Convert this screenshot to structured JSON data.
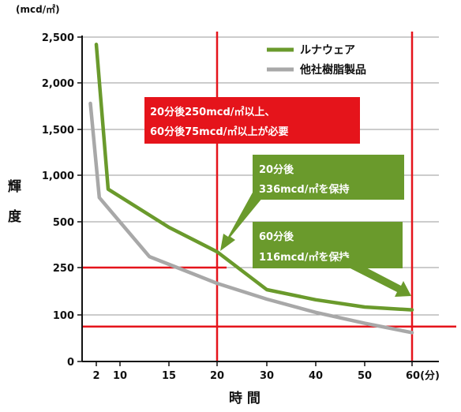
{
  "chart_data": {
    "type": "line",
    "unit_label": "(mcd/㎡)",
    "xlabel": "時 間",
    "ylabel_chars": [
      "輝",
      "度"
    ],
    "x_ticks": [
      "2",
      "10",
      "15",
      "20",
      "30",
      "40",
      "50",
      "60(分)"
    ],
    "y_ticks": [
      "0",
      "100",
      "250",
      "500",
      "1,000",
      "1,500",
      "2,000",
      "2,500"
    ],
    "series": [
      {
        "name": "ルナウェア",
        "color": "#6a9a2c",
        "points": [
          [
            2,
            2420
          ],
          [
            6,
            850
          ],
          [
            15,
            470
          ],
          [
            20,
            336
          ],
          [
            30,
            180
          ],
          [
            40,
            148
          ],
          [
            50,
            125
          ],
          [
            60,
            116
          ]
        ]
      },
      {
        "name": "他社樹脂製品",
        "color": "#a8a8a8",
        "points": [
          [
            1,
            1780
          ],
          [
            3,
            760
          ],
          [
            13,
            310
          ],
          [
            20,
            200
          ],
          [
            30,
            150
          ],
          [
            40,
            108
          ],
          [
            50,
            82
          ],
          [
            60,
            62
          ]
        ]
      }
    ],
    "reference_lines": {
      "x_minutes": [
        20,
        60
      ],
      "y_values": [
        250,
        75
      ],
      "color": "#e5141b"
    },
    "annotations": {
      "requirement": [
        "20分後250mcd/㎡以上、",
        "60分後75mcd/㎡以上が必要"
      ],
      "note20": [
        "20分後",
        "336mcd/㎡を保持"
      ],
      "note60": [
        "60分後",
        "116mcd/㎡を保持"
      ]
    },
    "colors": {
      "red": "#e5141b",
      "green_box": "#6a9a2c"
    }
  }
}
